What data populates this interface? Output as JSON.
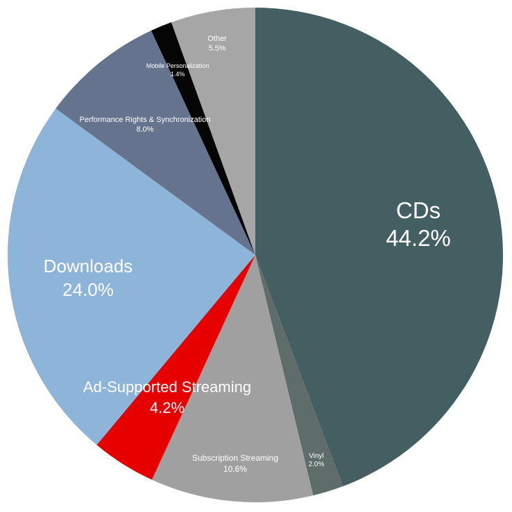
{
  "chart_data": {
    "type": "pie",
    "slices": [
      {
        "label": "CDs",
        "value": 44.2,
        "value_label": "44.2%",
        "color": "#445f62"
      },
      {
        "label": "Vinyl",
        "value": 2.0,
        "value_label": "2.0%",
        "color": "#5f6d6a"
      },
      {
        "label": "Subscription Streaming",
        "value": 10.6,
        "value_label": "10.6%",
        "color": "#a0a0a0"
      },
      {
        "label": "Ad-Supported Streaming",
        "value": 4.2,
        "value_label": "4.2%",
        "color": "#e60000"
      },
      {
        "label": "Downloads",
        "value": 24.0,
        "value_label": "24.0%",
        "color": "#8db4d9"
      },
      {
        "label": "Performance Rights & Synchronization",
        "value": 8.0,
        "value_label": "8.0%",
        "color": "#65738f"
      },
      {
        "label": "Mobile Personalization",
        "value": 1.4,
        "value_label": "1.4%",
        "color": "#050505"
      },
      {
        "label": "Other",
        "value": 5.5,
        "value_label": "5.5%",
        "color": "#a6a6a6"
      }
    ],
    "start": "12 o'clock",
    "direction": "clockwise"
  }
}
